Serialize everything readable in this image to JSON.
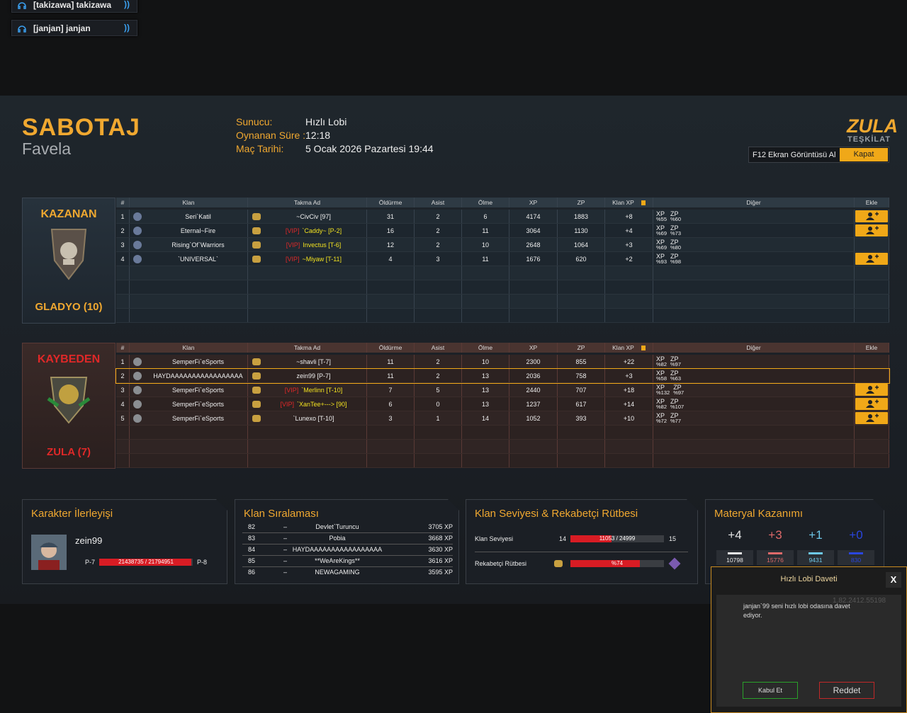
{
  "party": [
    {
      "name": "[takizawa] takizawa"
    },
    {
      "name": "[janjan] janjan"
    }
  ],
  "header": {
    "mode": "SABOTAJ",
    "map": "Favela",
    "info": [
      {
        "label": "Sunucu:",
        "value": "Hızlı Lobi"
      },
      {
        "label": "Oynanan Süre :",
        "value": "12:18"
      },
      {
        "label": "Maç Tarihi:",
        "value": "5 Ocak 2026 Pazartesi 19:44"
      }
    ],
    "logo": "ZULA",
    "logo_sub": "TEŞKİLAT",
    "screenshot": "F12 Ekran Görüntüsü Al",
    "close": "Kapat"
  },
  "columns": [
    "#",
    "Klan",
    "Takma Ad",
    "Öldürme",
    "Asist",
    "Ölme",
    "XP",
    "ZP",
    "Klan XP",
    "Diğer",
    "Ekle"
  ],
  "teams": [
    {
      "result": "KAZANAN",
      "name": "GLADYO (10)",
      "rows": [
        {
          "rank": 1,
          "clan": "Seri`Katil",
          "vip": null,
          "nick": "~CivCiv [97]",
          "kills": 31,
          "assists": 2,
          "deaths": 6,
          "xp": 4174,
          "zp": 1883,
          "clan_xp": "+8",
          "other": [
            {
              "k": "XP",
              "v": "%55"
            },
            {
              "k": "ZP",
              "v": "%60"
            }
          ],
          "add": true
        },
        {
          "rank": 2,
          "clan": "Eternal~Fire",
          "vip": "[VIP]",
          "nick": "`Caddy~ [P-2]",
          "kills": 16,
          "assists": 2,
          "deaths": 11,
          "xp": 3064,
          "zp": 1130,
          "clan_xp": "+4",
          "other": [
            {
              "k": "XP",
              "v": "%69"
            },
            {
              "k": "ZP",
              "v": "%73"
            }
          ],
          "add": true
        },
        {
          "rank": 3,
          "clan": "Rising`Of`Warriors",
          "vip": "[VIP]",
          "nick": "Invectus [T-6]",
          "kills": 12,
          "assists": 2,
          "deaths": 10,
          "xp": 2648,
          "zp": 1064,
          "clan_xp": "+3",
          "other": [
            {
              "k": "XP",
              "v": "%69"
            },
            {
              "k": "ZP",
              "v": "%80"
            }
          ],
          "add": false
        },
        {
          "rank": 4,
          "clan": "`UNIVERSAL`",
          "vip": "[VIP]",
          "nick": "~Miyaw [T-11]",
          "kills": 4,
          "assists": 3,
          "deaths": 11,
          "xp": 1676,
          "zp": 620,
          "clan_xp": "+2",
          "other": [
            {
              "k": "XP",
              "v": "%93"
            },
            {
              "k": "ZP",
              "v": "%98"
            }
          ],
          "add": true
        }
      ]
    },
    {
      "result": "KAYBEDEN",
      "name": "ZULA (7)",
      "rows": [
        {
          "rank": 1,
          "clan": "SemperFi`eSports",
          "vip": null,
          "nick": "~shavli [T-7]",
          "kills": 11,
          "assists": 2,
          "deaths": 10,
          "xp": 2300,
          "zp": 855,
          "clan_xp": "+22",
          "other": [
            {
              "k": "XP",
              "v": "%82"
            },
            {
              "k": "ZP",
              "v": "%97"
            }
          ],
          "add": false
        },
        {
          "rank": 2,
          "clan": "HAYDAAAAAAAAAAAAAAAAA",
          "vip": null,
          "nick": "zein99 [P-7]",
          "kills": 11,
          "assists": 2,
          "deaths": 13,
          "xp": 2036,
          "zp": 758,
          "clan_xp": "+3",
          "other": [
            {
              "k": "XP",
              "v": "%58"
            },
            {
              "k": "ZP",
              "v": "%63"
            }
          ],
          "add": false,
          "highlight": true
        },
        {
          "rank": 3,
          "clan": "SemperFi`eSports",
          "vip": "[VIP]",
          "nick": "`Merlinn [T-10]",
          "kills": 7,
          "assists": 5,
          "deaths": 13,
          "xp": 2440,
          "zp": 707,
          "clan_xp": "+18",
          "other": [
            {
              "k": "XP",
              "v": "%132"
            },
            {
              "k": "ZP",
              "v": "%97"
            }
          ],
          "add": true
        },
        {
          "rank": 4,
          "clan": "SemperFi`eSports",
          "vip": "[VIP]",
          "nick": "`XanTee+---> [90]",
          "kills": 6,
          "assists": 0,
          "deaths": 13,
          "xp": 1237,
          "zp": 617,
          "clan_xp": "+14",
          "other": [
            {
              "k": "XP",
              "v": "%82"
            },
            {
              "k": "ZP",
              "v": "%107"
            }
          ],
          "add": true
        },
        {
          "rank": 5,
          "clan": "SemperFi`eSports",
          "vip": null,
          "nick": "`Lunexo [T-10]",
          "kills": 3,
          "assists": 1,
          "deaths": 14,
          "xp": 1052,
          "zp": 393,
          "clan_xp": "+10",
          "other": [
            {
              "k": "XP",
              "v": "%72"
            },
            {
              "k": "ZP",
              "v": "%77"
            }
          ],
          "add": true
        }
      ]
    }
  ],
  "character": {
    "title": "Karakter İlerleyişi",
    "name": "zein99",
    "from": "P-7",
    "to": "P-8",
    "progress": {
      "value": 21438735,
      "max": 21794951,
      "label": "21438735 / 21794951"
    }
  },
  "ranking": {
    "title": "Klan Sıralaması",
    "rows": [
      [
        82,
        "–",
        "Devlet`Turuncu",
        "3705 XP"
      ],
      [
        83,
        "–",
        "Pobia",
        "3668 XP"
      ],
      [
        84,
        "–",
        "HAYDAAAAAAAAAAAAAAAAA",
        "3630 XP"
      ],
      [
        85,
        "–",
        "**WeAreKings**",
        "3616 XP"
      ],
      [
        86,
        "–",
        "NEWAGAMING",
        "3595 XP"
      ]
    ]
  },
  "clan_level": {
    "title": "Klan Seviyesi & Rekabetçi Rütbesi",
    "level_label": "Klan Seviyesi",
    "level": 14,
    "next_level": 15,
    "progress": {
      "value": 11053,
      "max": 24999,
      "label": "11053 / 24999"
    },
    "rank_label": "Rekabetçi Rütbesi",
    "rank_progress": {
      "value": 74,
      "max": 100,
      "label": "%74"
    }
  },
  "materials": {
    "title": "Materyal Kazanımı",
    "items": [
      {
        "gain": "+4",
        "total": 10798,
        "color": "#e6e6e6"
      },
      {
        "gain": "+3",
        "total": 15776,
        "color": "#e06a6a"
      },
      {
        "gain": "+1",
        "total": 9431,
        "color": "#6ec8ea"
      },
      {
        "gain": "+0",
        "total": 830,
        "color": "#2a46e0"
      }
    ]
  },
  "invite": {
    "title": "Hızlı Lobi Daveti",
    "close": "X",
    "version": "1.82.2412.55198",
    "message": "janjan`99 seni hızlı lobi odasına davet ediyor.",
    "accept": "Kabul Et",
    "reject": "Reddet"
  }
}
